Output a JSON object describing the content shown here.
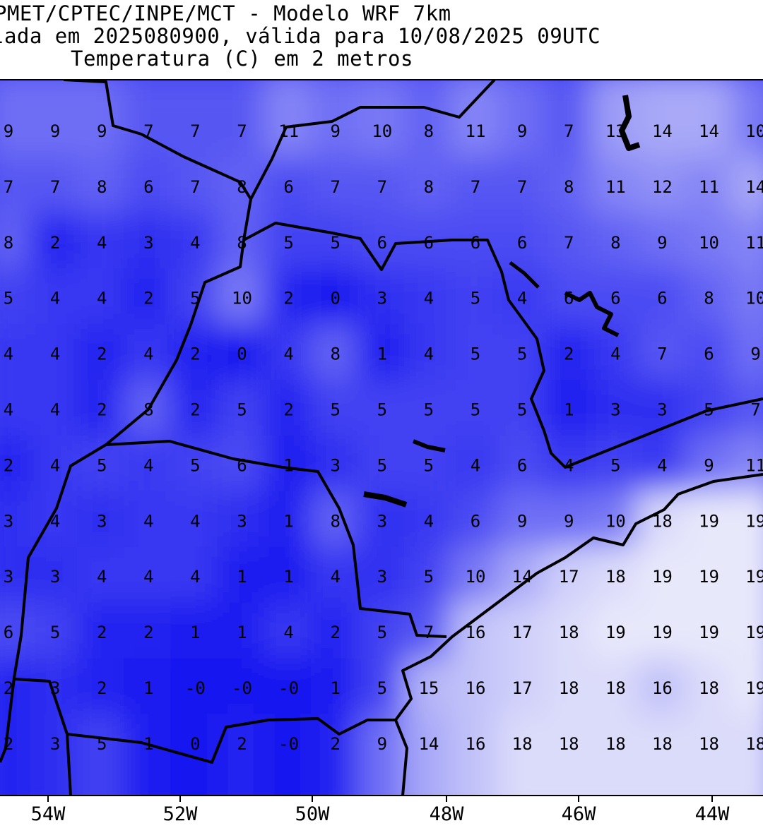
{
  "header": {
    "line1": "PMET/CPTEC/INPE/MCT - Modelo WRF 7km",
    "line2": "lada em 2025080900, válida para 10/08/2025 09UTC",
    "line3": "Temperatura (C) em 2 metros"
  },
  "x_axis": {
    "labels": [
      "54W",
      "52W",
      "50W",
      "48W",
      "46W",
      "44W"
    ]
  },
  "colors": {
    "coldest": "#1414f0",
    "warmest": "#e8e8fb",
    "boundaries": "#000000"
  },
  "temperature_grid": [
    [
      "9",
      "9",
      "9",
      "7",
      "7",
      "7",
      "11",
      "9",
      "10",
      "8",
      "11",
      "9",
      "7",
      "13",
      "14",
      "14",
      "10"
    ],
    [
      "7",
      "7",
      "8",
      "6",
      "7",
      "8",
      "6",
      "7",
      "7",
      "8",
      "7",
      "7",
      "8",
      "11",
      "12",
      "11",
      "14"
    ],
    [
      "8",
      "2",
      "4",
      "3",
      "4",
      "8",
      "5",
      "5",
      "6",
      "6",
      "6",
      "6",
      "7",
      "8",
      "9",
      "10",
      "11"
    ],
    [
      "5",
      "4",
      "4",
      "2",
      "5",
      "10",
      "2",
      "0",
      "3",
      "4",
      "5",
      "4",
      "6",
      "6",
      "6",
      "8",
      "10"
    ],
    [
      "4",
      "4",
      "2",
      "4",
      "2",
      "0",
      "4",
      "8",
      "1",
      "4",
      "5",
      "5",
      "2",
      "4",
      "7",
      "6",
      "9"
    ],
    [
      "4",
      "4",
      "2",
      "8",
      "2",
      "5",
      "2",
      "5",
      "5",
      "5",
      "5",
      "5",
      "1",
      "3",
      "3",
      "5",
      "7"
    ],
    [
      "2",
      "4",
      "5",
      "4",
      "5",
      "6",
      "1",
      "3",
      "5",
      "5",
      "4",
      "6",
      "4",
      "5",
      "4",
      "9",
      "11"
    ],
    [
      "3",
      "4",
      "3",
      "4",
      "4",
      "3",
      "1",
      "8",
      "3",
      "4",
      "6",
      "9",
      "9",
      "10",
      "18",
      "19",
      "19"
    ],
    [
      "3",
      "3",
      "4",
      "4",
      "4",
      "1",
      "1",
      "4",
      "3",
      "5",
      "10",
      "14",
      "17",
      "18",
      "19",
      "19",
      "19"
    ],
    [
      "6",
      "5",
      "2",
      "2",
      "1",
      "1",
      "4",
      "2",
      "5",
      "7",
      "16",
      "17",
      "18",
      "19",
      "19",
      "19",
      "19"
    ],
    [
      "2",
      "3",
      "2",
      "1",
      "-0",
      "-0",
      "-0",
      "1",
      "5",
      "15",
      "16",
      "17",
      "18",
      "18",
      "16",
      "18",
      "19"
    ],
    [
      "2",
      "3",
      "5",
      "1",
      "0",
      "2",
      "-0",
      "2",
      "9",
      "14",
      "16",
      "18",
      "18",
      "18",
      "18",
      "18",
      "18"
    ]
  ]
}
